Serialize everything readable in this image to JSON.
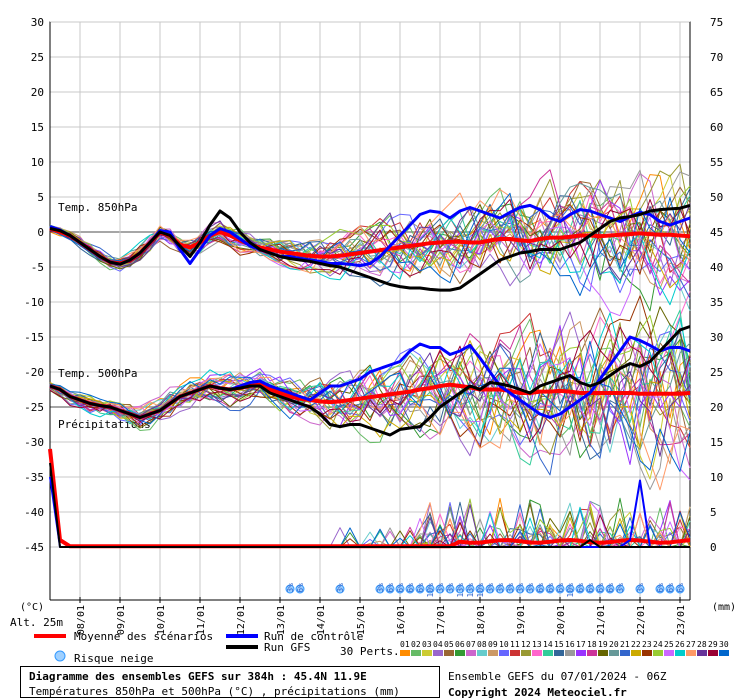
{
  "chart_data": {
    "type": "line",
    "left_axis": {
      "unit": "(°C)",
      "range": [
        -45,
        30
      ],
      "ticks": [
        30,
        25,
        20,
        15,
        10,
        5,
        0,
        -5,
        -10,
        -15,
        -20,
        -25,
        -30,
        -35,
        -40,
        -45
      ],
      "tick_labels": [
        "30",
        "25",
        "20",
        "15",
        "10",
        "5",
        "0",
        "-5",
        "-10",
        "-15",
        "-20",
        "-25",
        "-30",
        "-35",
        "-40",
        "-45"
      ]
    },
    "right_axis": {
      "unit": "(mm)",
      "range": [
        0,
        75
      ],
      "ticks": [
        75,
        70,
        65,
        60,
        55,
        50,
        45,
        40,
        35,
        30,
        25,
        20,
        15,
        10,
        5,
        0
      ],
      "tick_labels": [
        "75",
        "70",
        "65",
        "60",
        "55",
        "50",
        "45",
        "40",
        "35",
        "30",
        "25",
        "20",
        "15",
        "10",
        "5",
        "0"
      ]
    },
    "x_axis": {
      "range_hours": [
        0,
        384
      ],
      "day_labels": [
        "08/01",
        "09/01",
        "10/01",
        "11/01",
        "12/01",
        "13/01",
        "14/01",
        "15/01",
        "16/01",
        "17/01",
        "18/01",
        "19/01",
        "20/01",
        "21/01",
        "22/01",
        "23/01"
      ]
    },
    "panel_labels": {
      "t850": "Temp. 850hPa",
      "t500": "Temp. 500hPa",
      "precip": "Précipitations"
    },
    "altitude": "Alt. 25m",
    "series": [
      {
        "name": "Moyenne des scénarios",
        "color": "#ff0000",
        "variable": "t850",
        "values": [
          0.5,
          0,
          -0.5,
          -1.5,
          -2.5,
          -3.5,
          -4.3,
          -4.5,
          -4,
          -3,
          -1.5,
          0,
          -0.5,
          -1.8,
          -2.2,
          -1.5,
          -0.5,
          0,
          -0.5,
          -1.2,
          -1.8,
          -2.2,
          -2.5,
          -2.8,
          -3,
          -3.2,
          -3.4,
          -3.5,
          -3.5,
          -3.4,
          -3.2,
          -3,
          -2.8,
          -2.6,
          -2.4,
          -2.2,
          -2,
          -1.8,
          -1.6,
          -1.5,
          -1.4,
          -1.4,
          -1.5,
          -1.5,
          -1.2,
          -1,
          -1,
          -1.2,
          -1.3,
          -1,
          -0.8,
          -0.8,
          -0.7,
          -0.5,
          -0.5,
          -0.6,
          -0.5,
          -0.4,
          -0.3,
          -0.2,
          -0.3,
          -0.4,
          -0.4,
          -0.5,
          -0.6
        ]
      },
      {
        "name": "Run de contrôle",
        "color": "#0000ff",
        "variable": "t850",
        "values": [
          0.8,
          0.3,
          -0.5,
          -1.5,
          -2.5,
          -3.5,
          -4.3,
          -4.6,
          -4,
          -3,
          -1.5,
          0.2,
          0,
          -2.5,
          -4.5,
          -2.5,
          -0.5,
          0.5,
          0,
          -1,
          -2,
          -2.5,
          -3,
          -3.5,
          -3.5,
          -3.8,
          -4,
          -4.2,
          -4.5,
          -4.5,
          -4.6,
          -4.8,
          -4.5,
          -3.5,
          -2,
          -0.5,
          1,
          2.5,
          3,
          2.8,
          2,
          3,
          3.5,
          3,
          2.5,
          2,
          2.8,
          3.5,
          3.8,
          3.2,
          2,
          1.5,
          2.5,
          3.2,
          3,
          2.5,
          2,
          1.5,
          2.2,
          2.8,
          2.5,
          1.5,
          1,
          1.5,
          2
        ]
      },
      {
        "name": "Run GFS",
        "color": "#000000",
        "variable": "t850",
        "values": [
          0.5,
          0.2,
          -0.5,
          -1.5,
          -2.5,
          -3.5,
          -4.3,
          -4.6,
          -4,
          -3,
          -1.5,
          0,
          -0.5,
          -2,
          -3.5,
          -1.5,
          1,
          3,
          2,
          0,
          -1.5,
          -2.5,
          -3,
          -3.5,
          -3.8,
          -4,
          -4.2,
          -4.5,
          -4.8,
          -5,
          -5.5,
          -6,
          -6.5,
          -7,
          -7.5,
          -7.8,
          -8,
          -8,
          -8.2,
          -8.3,
          -8.3,
          -8,
          -7,
          -6,
          -5,
          -4,
          -3.5,
          -3,
          -2.8,
          -2.5,
          -2.5,
          -2.5,
          -2,
          -1.5,
          -0.5,
          0.5,
          1.5,
          2,
          2.2,
          2.5,
          3,
          3.2,
          3.3,
          3.4,
          3.8
        ]
      },
      {
        "name": "Moyenne des scénarios",
        "color": "#ff0000",
        "variable": "t500",
        "values": [
          -22,
          -22.5,
          -23.5,
          -24,
          -24.5,
          -24.8,
          -25,
          -25.5,
          -26,
          -26.5,
          -26,
          -25.5,
          -24.5,
          -23.5,
          -23,
          -22.5,
          -22,
          -22.3,
          -22.5,
          -22.3,
          -22,
          -21.8,
          -22.5,
          -23,
          -23.5,
          -23.8,
          -24,
          -24.2,
          -24.3,
          -24.2,
          -24,
          -23.8,
          -23.6,
          -23.4,
          -23.2,
          -23,
          -22.8,
          -22.5,
          -22.3,
          -22,
          -21.8,
          -22,
          -22.2,
          -22.5,
          -22.5,
          -22.5,
          -22.7,
          -23,
          -23,
          -22.8,
          -22.8,
          -22.7,
          -22.8,
          -23,
          -23,
          -23,
          -23,
          -23,
          -23,
          -23.1,
          -23.1,
          -23.1,
          -23.1,
          -23.1,
          -23
        ]
      },
      {
        "name": "Run de contrôle",
        "color": "#0000ff",
        "variable": "t500",
        "values": [
          -22,
          -22.5,
          -23.5,
          -24,
          -24.5,
          -24.8,
          -25,
          -25.5,
          -26,
          -26.5,
          -26,
          -25.5,
          -24.5,
          -23.5,
          -23,
          -22.5,
          -22,
          -22.3,
          -22.5,
          -22,
          -21.5,
          -21.3,
          -22,
          -22.5,
          -23,
          -23.5,
          -24,
          -23,
          -22,
          -22,
          -21.5,
          -21,
          -20,
          -19.5,
          -19,
          -18.5,
          -17,
          -16,
          -16.5,
          -16.5,
          -17.5,
          -17,
          -16.2,
          -18,
          -20,
          -22,
          -23,
          -24,
          -25,
          -26,
          -26.5,
          -26,
          -25,
          -24,
          -23,
          -21,
          -19,
          -17,
          -15,
          -15.5,
          -16.2,
          -17,
          -16.5,
          -16.5,
          -17
        ]
      },
      {
        "name": "Run GFS",
        "color": "#000000",
        "variable": "t500",
        "values": [
          -22,
          -22.5,
          -23.5,
          -24,
          -24.5,
          -24.8,
          -25,
          -25.5,
          -26,
          -26.5,
          -26,
          -25.5,
          -24.5,
          -23.5,
          -23,
          -22.5,
          -22,
          -22.3,
          -22.5,
          -22.3,
          -22,
          -22,
          -23,
          -23.5,
          -24,
          -24.5,
          -25,
          -26,
          -27.5,
          -27.8,
          -27.5,
          -27.5,
          -28,
          -28.5,
          -29,
          -28.2,
          -28,
          -27.8,
          -26.5,
          -25,
          -24,
          -23,
          -22,
          -22.5,
          -21.5,
          -21.7,
          -22,
          -22.5,
          -23,
          -22,
          -21.5,
          -21,
          -20.5,
          -21.5,
          -22,
          -21.5,
          -20.5,
          -19.5,
          -18.8,
          -19.2,
          -18.5,
          -17,
          -15.5,
          -14,
          -13.5
        ]
      }
    ],
    "snow_risk_hours": [
      144,
      150,
      174,
      198,
      204,
      210,
      216,
      222,
      228,
      234,
      240,
      246,
      252,
      258,
      264,
      270,
      276,
      282,
      288,
      294,
      300,
      306,
      312,
      318,
      324,
      330,
      336,
      342,
      354,
      366,
      372,
      378
    ],
    "snow_risk_labels": [
      "3%",
      "6%",
      "3%",
      "3%",
      "6%",
      "6%",
      "6%",
      "6%",
      "10%",
      "3%",
      "3%",
      "13%",
      "13%",
      "10%",
      "3%",
      "3%",
      "3%",
      "3%",
      "3%",
      "6%",
      "6%",
      "6%",
      "10%",
      "6%",
      "6%",
      "6%",
      "6%",
      "3%",
      "3%",
      "6%",
      "6%",
      "6%"
    ],
    "legend": [
      {
        "label": "Moyenne des scénarios",
        "color": "#ff0000"
      },
      {
        "label": "Run de contrôle",
        "color": "#0000ff"
      },
      {
        "label": "Run GFS",
        "color": "#000000"
      },
      {
        "label": "Risque neige",
        "color": "#3399ff"
      }
    ],
    "perts": {
      "label": "30 Perts.",
      "numbers": [
        "01",
        "02",
        "03",
        "04",
        "05",
        "06",
        "07",
        "08",
        "09",
        "10",
        "11",
        "12",
        "13",
        "14",
        "15",
        "16",
        "17",
        "18",
        "19",
        "20",
        "21",
        "22",
        "23",
        "24",
        "25",
        "26",
        "27",
        "28",
        "29",
        "30"
      ],
      "colors": [
        "#ff8c00",
        "#66bb66",
        "#cccc33",
        "#9966cc",
        "#996633",
        "#339933",
        "#cc66cc",
        "#66cccc",
        "#cc9966",
        "#6666ff",
        "#cc3333",
        "#999933",
        "#ff66cc",
        "#33cc99",
        "#336699",
        "#999999",
        "#9933ff",
        "#cc3399",
        "#666600",
        "#669999",
        "#3366cc",
        "#ccaa00",
        "#993300",
        "#99cc33",
        "#cc66ff",
        "#00cccc",
        "#ff9966",
        "#663399",
        "#990033",
        "#0066cc"
      ]
    }
  },
  "info": {
    "title": "Diagramme des ensembles GEFS sur 384h : 45.4N 11.9E",
    "subtitle": "Températures 850hPa et 500hPa (°C) , précipitations (mm)",
    "run": "Ensemble GEFS du 07/01/2024 - 06Z",
    "copyright": "Copyright 2024 Meteociel.fr"
  },
  "precip_peaks_mm": [
    8.5,
    9.5
  ]
}
